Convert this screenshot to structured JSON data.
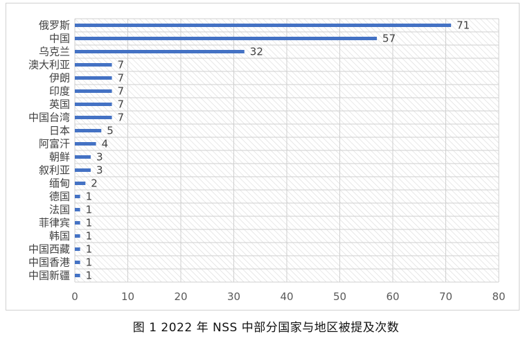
{
  "chart_data": {
    "type": "bar",
    "orientation": "horizontal",
    "categories": [
      "俄罗斯",
      "中国",
      "乌克兰",
      "澳大利亚",
      "伊朗",
      "印度",
      "英国",
      "中国台湾",
      "日本",
      "阿富汗",
      "朝鲜",
      "叙利亚",
      "缅甸",
      "德国",
      "法国",
      "菲律宾",
      "韩国",
      "中国西藏",
      "中国香港",
      "中国新疆"
    ],
    "values": [
      71,
      57,
      32,
      7,
      7,
      7,
      7,
      7,
      5,
      4,
      3,
      3,
      2,
      1,
      1,
      1,
      1,
      1,
      1,
      1
    ],
    "xlim": [
      0,
      80
    ],
    "xticks": [
      0,
      10,
      20,
      30,
      40,
      50,
      60,
      70,
      80
    ],
    "grid": true,
    "data_labels": true,
    "bar_color": "#4472C4",
    "plot_background": "hatched",
    "legend": "none"
  },
  "caption": {
    "text": "图 1 2022 年 NSS 中部分国家与地区被提及次数"
  }
}
